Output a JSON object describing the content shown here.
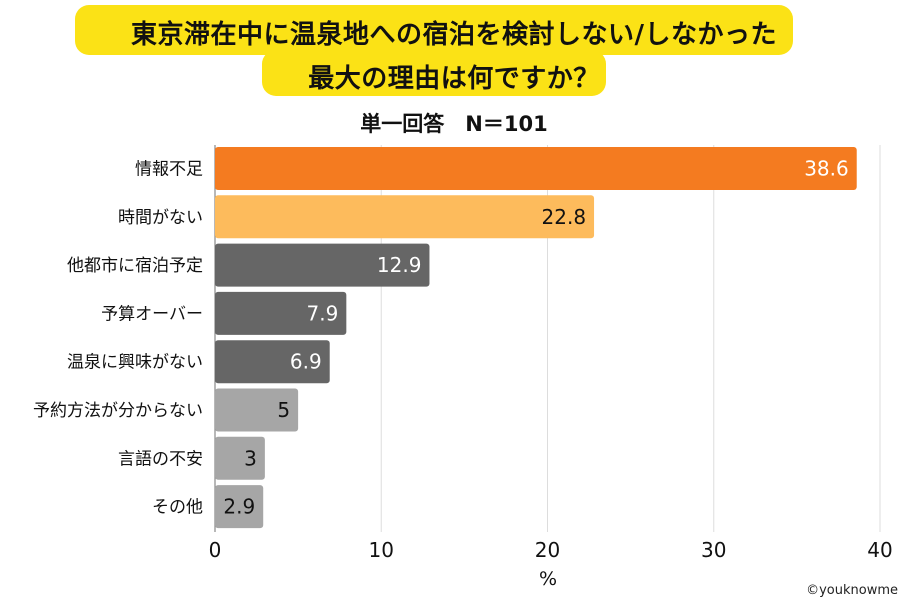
{
  "title_line1": "東京滞在中に温泉地への宿泊を検討しない/しなかった",
  "title_line2": "最大の理由は何ですか？",
  "subtitle": "単一回答　N＝101",
  "credit": "©youknowme",
  "chart_data": {
    "type": "bar",
    "orientation": "horizontal",
    "categories": [
      "情報不足",
      "時間がない",
      "他都市に宿泊予定",
      "予算オーバー",
      "温泉に興味がない",
      "予約方法が分からない",
      "言語の不安",
      "その他"
    ],
    "values": [
      38.6,
      22.8,
      12.9,
      7.9,
      6.9,
      5,
      3,
      2.9
    ],
    "value_labels": [
      "38.6",
      "22.8",
      "12.9",
      "7.9",
      "6.9",
      "5",
      "3",
      "2.9"
    ],
    "colors": [
      "#f47b20",
      "#fdbb5c",
      "#666666",
      "#666666",
      "#666666",
      "#a6a6a6",
      "#a6a6a6",
      "#a6a6a6"
    ],
    "label_colors": [
      "#ffffff",
      "#111111",
      "#ffffff",
      "#ffffff",
      "#ffffff",
      "#111111",
      "#111111",
      "#111111"
    ],
    "xlim": [
      0,
      40
    ],
    "xticks": [
      0,
      10,
      20,
      30,
      40
    ],
    "xlabel": "%",
    "grid": true
  }
}
